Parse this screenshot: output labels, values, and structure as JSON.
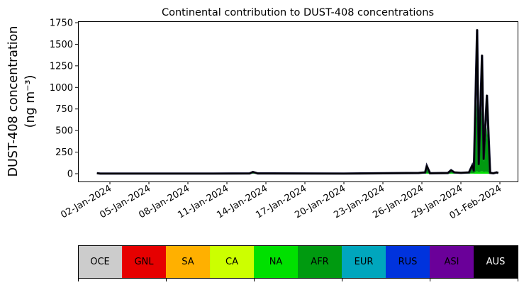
{
  "chart_data": {
    "type": "area",
    "stacked": true,
    "title": "Continental contribution to DUST-408 concentrations",
    "ylabel_line1": "DUST-408 concentration",
    "ylabel_line2": "(ng m⁻³)",
    "xlabel": "",
    "ylim": [
      -70,
      1770
    ],
    "xlim": [
      "2023-12-30T13:00",
      "2024-02-02T09:00"
    ],
    "yticks": [
      0,
      250,
      500,
      750,
      1000,
      1250,
      1500,
      1750
    ],
    "xticks": [
      "2024-01-02",
      "2024-01-05",
      "2024-01-08",
      "2024-01-11",
      "2024-01-14",
      "2024-01-17",
      "2024-01-20",
      "2024-01-23",
      "2024-01-26",
      "2024-01-29",
      "2024-02-01"
    ],
    "xtick_labels": [
      "02-Jan-2024",
      "05-Jan-2024",
      "08-Jan-2024",
      "11-Jan-2024",
      "14-Jan-2024",
      "17-Jan-2024",
      "20-Jan-2024",
      "23-Jan-2024",
      "26-Jan-2024",
      "29-Jan-2024",
      "01-Feb-2024"
    ],
    "grid": false,
    "x": [
      "2024-01-01T00:00",
      "2024-01-01T06:00",
      "2024-01-05T00:00",
      "2024-01-10T00:00",
      "2024-01-12T18:00",
      "2024-01-13T00:00",
      "2024-01-13T09:00",
      "2024-01-20T00:00",
      "2024-01-25T18:00",
      "2024-01-26T06:00",
      "2024-01-26T09:00",
      "2024-01-26T15:00",
      "2024-01-28T00:00",
      "2024-01-28T06:00",
      "2024-01-28T12:00",
      "2024-01-29T00:00",
      "2024-01-29T15:00",
      "2024-01-29T21:00",
      "2024-01-30T00:00",
      "2024-01-30T06:00",
      "2024-01-30T09:00",
      "2024-01-30T15:00",
      "2024-01-30T18:00",
      "2024-01-31T00:00",
      "2024-01-31T06:00",
      "2024-01-31T12:00",
      "2024-01-31T18:00",
      "2024-01-31T21:00"
    ],
    "total": [
      6,
      2,
      2,
      2,
      3,
      20,
      3,
      2,
      8,
      15,
      90,
      5,
      8,
      40,
      15,
      10,
      15,
      95,
      30,
      1670,
      105,
      1375,
      165,
      910,
      10,
      5,
      15,
      8
    ],
    "series": [
      {
        "name": "NA",
        "color": "#00e000",
        "values": [
          1,
          0,
          0,
          0,
          1,
          4,
          1,
          0,
          2,
          3,
          8,
          1,
          2,
          6,
          3,
          2,
          3,
          8,
          4,
          30,
          15,
          30,
          20,
          25,
          2,
          1,
          3,
          2
        ]
      },
      {
        "name": "AFR",
        "color": "#009a10",
        "values": [
          2,
          0,
          0,
          0,
          1,
          10,
          1,
          0,
          4,
          8,
          50,
          2,
          4,
          25,
          8,
          5,
          8,
          70,
          18,
          880,
          80,
          780,
          120,
          520,
          5,
          2,
          8,
          4
        ]
      }
    ],
    "total_line_color": "#000000",
    "colorbar": {
      "labels": [
        "OCE",
        "GNL",
        "SA",
        "CA",
        "NA",
        "AFR",
        "EUR",
        "RUS",
        "ASI",
        "AUS"
      ],
      "colors": [
        "#cccccc",
        "#e60000",
        "#ffb000",
        "#ccff00",
        "#00e000",
        "#009a10",
        "#00a6bd",
        "#0033dd",
        "#6a0099",
        "#000000"
      ],
      "text_colors": [
        "#000",
        "#000",
        "#000",
        "#000",
        "#000",
        "#000",
        "#000",
        "#000",
        "#000",
        "#fff"
      ]
    }
  }
}
